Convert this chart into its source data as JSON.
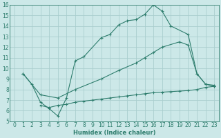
{
  "line1_x": [
    1,
    2,
    3,
    4,
    5,
    6,
    7,
    8,
    10,
    11,
    12,
    13,
    14,
    15,
    16,
    17,
    18,
    20,
    21,
    22,
    23
  ],
  "line1_y": [
    9.5,
    8.5,
    6.8,
    6.2,
    5.5,
    7.2,
    10.7,
    11.1,
    12.9,
    13.2,
    14.1,
    14.5,
    14.6,
    15.1,
    16.0,
    15.4,
    14.0,
    13.2,
    9.5,
    8.5,
    8.4
  ],
  "line2_x": [
    1,
    3,
    5,
    7,
    10,
    12,
    14,
    15,
    16,
    17,
    19,
    20,
    21,
    22,
    23
  ],
  "line2_y": [
    9.5,
    7.5,
    7.2,
    8.0,
    9.0,
    9.8,
    10.5,
    11.0,
    11.5,
    12.0,
    12.5,
    12.2,
    9.5,
    8.5,
    8.3
  ],
  "line3_x": [
    3,
    4,
    5,
    6,
    7,
    8,
    9,
    10,
    11,
    12,
    13,
    14,
    15,
    16,
    17,
    18,
    19,
    20,
    21,
    22,
    23
  ],
  "line3_y": [
    6.5,
    6.3,
    6.5,
    6.6,
    6.8,
    6.9,
    7.0,
    7.1,
    7.2,
    7.3,
    7.4,
    7.5,
    7.6,
    7.7,
    7.75,
    7.8,
    7.85,
    7.9,
    8.0,
    8.2,
    8.3
  ],
  "color": "#2e7d6d",
  "bg_color": "#cce8e8",
  "grid_color": "#aacece",
  "xlabel": "Humidex (Indice chaleur)",
  "xlim": [
    -0.5,
    23.5
  ],
  "ylim": [
    5,
    16
  ],
  "xticks": [
    0,
    1,
    2,
    3,
    4,
    5,
    6,
    7,
    8,
    9,
    10,
    11,
    12,
    13,
    14,
    15,
    16,
    17,
    18,
    19,
    20,
    21,
    22,
    23
  ],
  "yticks": [
    5,
    6,
    7,
    8,
    9,
    10,
    11,
    12,
    13,
    14,
    15,
    16
  ]
}
